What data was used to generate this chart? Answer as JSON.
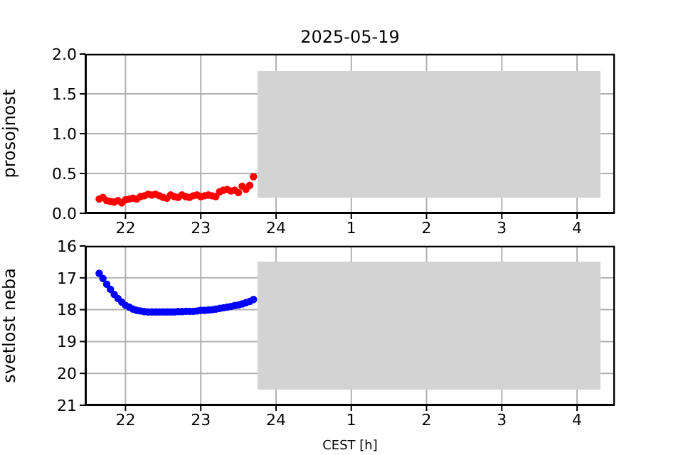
{
  "chart_data": [
    {
      "type": "scatter",
      "title": "2025-05-19",
      "ylabel": "prosojnost",
      "xlim": [
        "2025-05-19T21:28",
        "2025-05-20T04:30"
      ],
      "xticks": [
        {
          "value": "2025-05-19T22:00",
          "label": "22"
        },
        {
          "value": "2025-05-19T23:00",
          "label": "23"
        },
        {
          "value": "2025-05-20T00:00",
          "label": "24"
        },
        {
          "value": "2025-05-20T01:00",
          "label": "1"
        },
        {
          "value": "2025-05-20T02:00",
          "label": "2"
        },
        {
          "value": "2025-05-20T03:00",
          "label": "3"
        },
        {
          "value": "2025-05-20T04:00",
          "label": "4"
        }
      ],
      "ylim": [
        0,
        2
      ],
      "yticks": [
        {
          "value": 0,
          "label": "0.0"
        },
        0.5,
        {
          "value": 1,
          "label": "1.0"
        },
        1.5,
        {
          "value": 2,
          "label": "2.0"
        }
      ],
      "grid": true,
      "marker": "circle",
      "x": [
        "2025-05-19T21:39",
        "2025-05-19T21:42",
        "2025-05-19T21:45",
        "2025-05-19T21:48",
        "2025-05-19T21:51",
        "2025-05-19T21:54",
        "2025-05-19T21:57",
        "2025-05-19T22:00",
        "2025-05-19T22:03",
        "2025-05-19T22:06",
        "2025-05-19T22:09",
        "2025-05-19T22:12",
        "2025-05-19T22:15",
        "2025-05-19T22:18",
        "2025-05-19T22:21",
        "2025-05-19T22:24",
        "2025-05-19T22:27",
        "2025-05-19T22:30",
        "2025-05-19T22:33",
        "2025-05-19T22:36",
        "2025-05-19T22:39",
        "2025-05-19T22:42",
        "2025-05-19T22:45",
        "2025-05-19T22:48",
        "2025-05-19T22:51",
        "2025-05-19T22:54",
        "2025-05-19T22:57",
        "2025-05-19T23:00",
        "2025-05-19T23:03",
        "2025-05-19T23:06",
        "2025-05-19T23:09",
        "2025-05-19T23:12",
        "2025-05-19T23:15",
        "2025-05-19T23:18",
        "2025-05-19T23:21",
        "2025-05-19T23:24",
        "2025-05-19T23:27",
        "2025-05-19T23:30",
        "2025-05-19T23:33",
        "2025-05-19T23:36",
        "2025-05-19T23:39",
        "2025-05-19T23:42"
      ],
      "series": [
        {
          "color": "#ff0000",
          "values": [
            0.18,
            0.2,
            0.16,
            0.15,
            0.14,
            0.16,
            0.13,
            0.17,
            0.18,
            0.19,
            0.18,
            0.21,
            0.22,
            0.24,
            0.23,
            0.24,
            0.22,
            0.2,
            0.19,
            0.23,
            0.21,
            0.2,
            0.23,
            0.21,
            0.2,
            0.22,
            0.23,
            0.21,
            0.22,
            0.23,
            0.22,
            0.21,
            0.27,
            0.29,
            0.3,
            0.28,
            0.29,
            0.26,
            0.34,
            0.3,
            0.35,
            0.46
          ]
        }
      ]
    },
    {
      "type": "scatter",
      "ylabel": "svetlost neba",
      "xlabel": "CEST [h]",
      "xlim": [
        "2025-05-19T21:28",
        "2025-05-20T04:30"
      ],
      "xticks": [
        {
          "value": "2025-05-19T22:00",
          "label": "22"
        },
        {
          "value": "2025-05-19T23:00",
          "label": "23"
        },
        {
          "value": "2025-05-20T00:00",
          "label": "24"
        },
        {
          "value": "2025-05-20T01:00",
          "label": "1"
        },
        {
          "value": "2025-05-20T02:00",
          "label": "2"
        },
        {
          "value": "2025-05-20T03:00",
          "label": "3"
        },
        {
          "value": "2025-05-20T04:00",
          "label": "4"
        }
      ],
      "ylim": [
        21,
        16
      ],
      "yticks": [
        16,
        17,
        18,
        19,
        20,
        21
      ],
      "grid": true,
      "marker": "circle",
      "x": [
        "2025-05-19T21:39",
        "2025-05-19T21:42",
        "2025-05-19T21:45",
        "2025-05-19T21:48",
        "2025-05-19T21:51",
        "2025-05-19T21:54",
        "2025-05-19T21:57",
        "2025-05-19T22:00",
        "2025-05-19T22:03",
        "2025-05-19T22:06",
        "2025-05-19T22:09",
        "2025-05-19T22:12",
        "2025-05-19T22:15",
        "2025-05-19T22:18",
        "2025-05-19T22:21",
        "2025-05-19T22:24",
        "2025-05-19T22:27",
        "2025-05-19T22:30",
        "2025-05-19T22:33",
        "2025-05-19T22:36",
        "2025-05-19T22:39",
        "2025-05-19T22:42",
        "2025-05-19T22:45",
        "2025-05-19T22:48",
        "2025-05-19T22:51",
        "2025-05-19T22:54",
        "2025-05-19T22:57",
        "2025-05-19T23:00",
        "2025-05-19T23:03",
        "2025-05-19T23:06",
        "2025-05-19T23:09",
        "2025-05-19T23:12",
        "2025-05-19T23:15",
        "2025-05-19T23:18",
        "2025-05-19T23:21",
        "2025-05-19T23:24",
        "2025-05-19T23:27",
        "2025-05-19T23:30",
        "2025-05-19T23:33",
        "2025-05-19T23:36",
        "2025-05-19T23:39",
        "2025-05-19T23:42"
      ],
      "series": [
        {
          "color": "#0000ff",
          "values": [
            16.86,
            17.02,
            17.2,
            17.36,
            17.52,
            17.65,
            17.76,
            17.86,
            17.92,
            17.98,
            18.02,
            18.04,
            18.06,
            18.07,
            18.07,
            18.07,
            18.07,
            18.07,
            18.07,
            18.07,
            18.07,
            18.06,
            18.06,
            18.05,
            18.05,
            18.05,
            18.04,
            18.02,
            18.02,
            18.01,
            18.0,
            17.98,
            17.96,
            17.94,
            17.92,
            17.9,
            17.87,
            17.85,
            17.82,
            17.78,
            17.74,
            17.68
          ]
        }
      ]
    }
  ]
}
